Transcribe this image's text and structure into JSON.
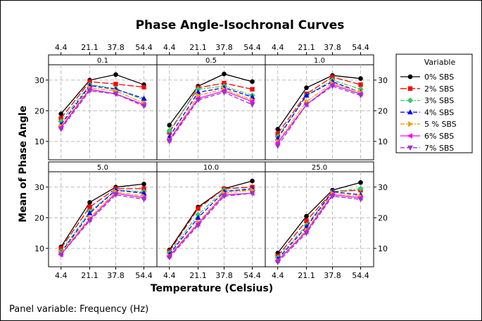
{
  "chart_data": {
    "type": "line",
    "title": "Phase Angle-Isochronal Curves",
    "xlabel": "Temperature (Celsius)",
    "ylabel": "Mean of Phase Angle",
    "footnote": "Panel variable: Frequency (Hz)",
    "legend_title": "Variable",
    "legend_position": "right",
    "categories": [
      "4.4",
      "21.1",
      "37.8",
      "54.4"
    ],
    "yticks": [
      "10",
      "20",
      "30"
    ],
    "ylim": [
      4,
      35
    ],
    "series": [
      {
        "name": "0% SBS",
        "color": "#000000",
        "marker": "circle",
        "dash": "solid"
      },
      {
        "name": "2% SBS",
        "color": "#ff0000",
        "marker": "square",
        "dash": "longdash"
      },
      {
        "name": "3% SBS",
        "color": "#33cc66",
        "marker": "diamond",
        "dash": "dashdot"
      },
      {
        "name": "4% SBS",
        "color": "#0000ff",
        "marker": "triangle-up",
        "dash": "dash"
      },
      {
        "name": "5 % SBS",
        "color": "#ff9900",
        "marker": "triangle-right",
        "dash": "dashdot"
      },
      {
        "name": "6% SBS",
        "color": "#ff00ff",
        "marker": "triangle-left",
        "dash": "solid"
      },
      {
        "name": "7% SBS",
        "color": "#9933cc",
        "marker": "triangle-down",
        "dash": "dash"
      }
    ],
    "panels": [
      {
        "label": "0.1",
        "values": [
          [
            19,
            30,
            31.8,
            28.5
          ],
          [
            17.5,
            29.5,
            28.7,
            27.7
          ],
          [
            16.5,
            28.5,
            27.2,
            23.5
          ],
          [
            15.5,
            28.2,
            27,
            24
          ],
          [
            15,
            27.5,
            26.5,
            22.5
          ],
          [
            14.5,
            27,
            25.5,
            22
          ],
          [
            14,
            26.5,
            25.5,
            21.5
          ]
        ]
      },
      {
        "label": "0.5",
        "values": [
          [
            15.3,
            28,
            32,
            29.5
          ],
          [
            13,
            27.5,
            29,
            27
          ],
          [
            13.5,
            27,
            28,
            25
          ],
          [
            11.5,
            26,
            27.5,
            24.5
          ],
          [
            10.5,
            25,
            27,
            23.5
          ],
          [
            10.5,
            24,
            26.5,
            23
          ],
          [
            10,
            23.5,
            26,
            22
          ]
        ]
      },
      {
        "label": "1.0",
        "values": [
          [
            14,
            27.5,
            31.5,
            30.5
          ],
          [
            12.5,
            25.5,
            31,
            28.5
          ],
          [
            11.5,
            25,
            30,
            27
          ],
          [
            11,
            25,
            29.5,
            26
          ],
          [
            10,
            23,
            29,
            26
          ],
          [
            9.5,
            22,
            28.5,
            25.5
          ],
          [
            8.5,
            22,
            28,
            25
          ]
        ]
      },
      {
        "label": "5.0",
        "values": [
          [
            10.5,
            25,
            30,
            31
          ],
          [
            10,
            23.5,
            29.5,
            29.5
          ],
          [
            9,
            22,
            29,
            28.5
          ],
          [
            8.5,
            21.5,
            29,
            28
          ],
          [
            8.5,
            20,
            28.5,
            27
          ],
          [
            8,
            19.5,
            28,
            26.5
          ],
          [
            8,
            19,
            27.5,
            26
          ]
        ]
      },
      {
        "label": "10.0",
        "values": [
          [
            9.5,
            23.5,
            29.5,
            32
          ],
          [
            9,
            23,
            29.5,
            30
          ],
          [
            8.5,
            21,
            29,
            29
          ],
          [
            8,
            20,
            28.5,
            29.5
          ],
          [
            7.5,
            18.5,
            28,
            29
          ],
          [
            7.5,
            18,
            27.5,
            28
          ],
          [
            7,
            17.5,
            27,
            28
          ]
        ]
      },
      {
        "label": "25.0",
        "values": [
          [
            8.5,
            20.5,
            29,
            31.5
          ],
          [
            7.5,
            19,
            28.5,
            29
          ],
          [
            7,
            17.5,
            28.5,
            29.5
          ],
          [
            6.5,
            17,
            28.5,
            27.5
          ],
          [
            6,
            16,
            28,
            27
          ],
          [
            6,
            15.5,
            27.5,
            26.5
          ],
          [
            5.5,
            15,
            27,
            26
          ]
        ]
      }
    ]
  }
}
